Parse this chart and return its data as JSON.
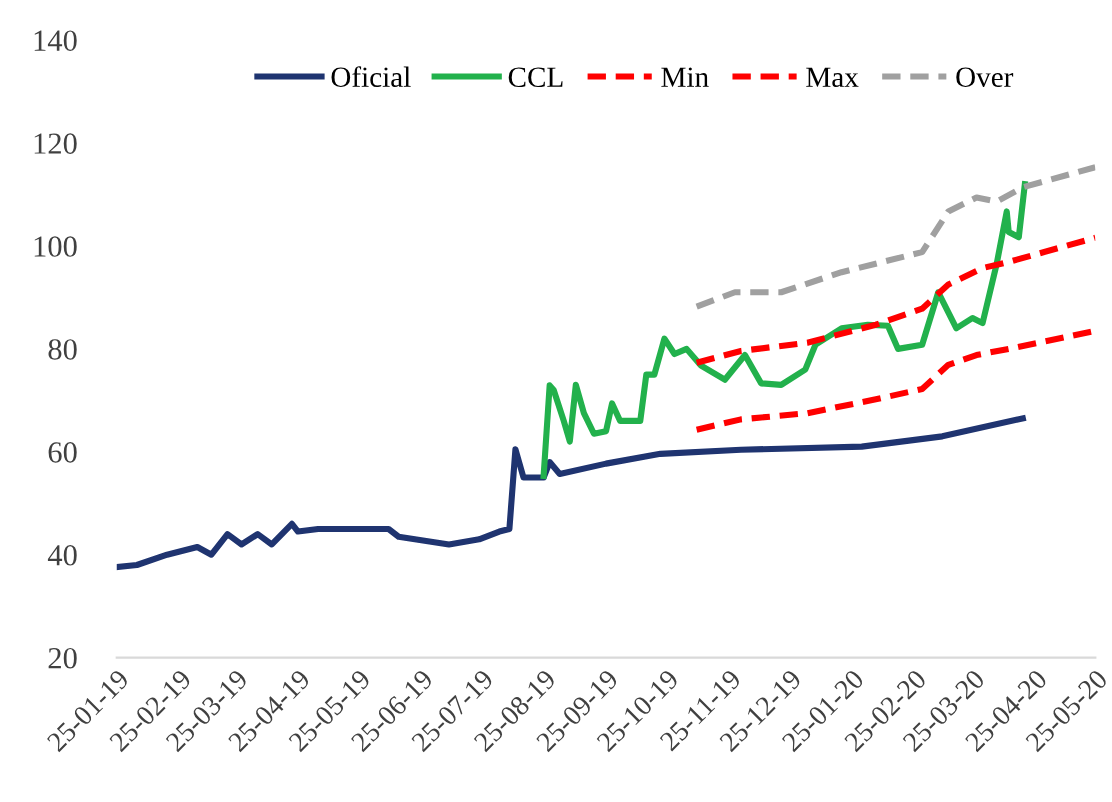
{
  "chart_data": {
    "type": "line",
    "xlim": [
      "2019-01-25",
      "2020-05-25"
    ],
    "xticks": [
      {
        "value": "2019-01-25",
        "label": "25-01-19"
      },
      {
        "value": "2019-02-25",
        "label": "25-02-19"
      },
      {
        "value": "2019-03-25",
        "label": "25-03-19"
      },
      {
        "value": "2019-04-25",
        "label": "25-04-19"
      },
      {
        "value": "2019-05-25",
        "label": "25-05-19"
      },
      {
        "value": "2019-06-25",
        "label": "25-06-19"
      },
      {
        "value": "2019-07-25",
        "label": "25-07-19"
      },
      {
        "value": "2019-08-25",
        "label": "25-08-19"
      },
      {
        "value": "2019-09-25",
        "label": "25-09-19"
      },
      {
        "value": "2019-10-25",
        "label": "25-10-19"
      },
      {
        "value": "2019-11-25",
        "label": "25-11-19"
      },
      {
        "value": "2019-12-25",
        "label": "25-12-19"
      },
      {
        "value": "2020-01-25",
        "label": "25-01-20"
      },
      {
        "value": "2020-02-25",
        "label": "25-02-20"
      },
      {
        "value": "2020-03-25",
        "label": "25-03-20"
      },
      {
        "value": "2020-04-25",
        "label": "25-04-20"
      },
      {
        "value": "2020-05-25",
        "label": "25-05-20"
      }
    ],
    "ylim": [
      20,
      140
    ],
    "yticks": [
      20,
      40,
      60,
      80,
      100,
      120,
      140
    ],
    "grid": false,
    "legend": "top",
    "marker": "none",
    "series": [
      {
        "name": "Oficial",
        "color": "#1f3470",
        "line_style": "solid",
        "x": [
          "2019-01-25",
          "2019-02-04",
          "2019-02-19",
          "2019-03-06",
          "2019-03-13",
          "2019-03-21",
          "2019-03-28",
          "2019-04-05",
          "2019-04-12",
          "2019-04-22",
          "2019-04-25",
          "2019-05-05",
          "2019-06-09",
          "2019-06-14",
          "2019-07-09",
          "2019-07-24",
          "2019-08-03",
          "2019-08-08",
          "2019-08-11",
          "2019-08-15",
          "2019-08-25",
          "2019-08-28",
          "2019-09-02",
          "2019-09-25",
          "2019-10-22",
          "2019-12-01",
          "2020-01-30",
          "2020-03-10",
          "2020-04-19"
        ],
        "values": [
          37.6,
          38,
          40,
          41.5,
          40,
          44,
          42,
          44,
          42,
          46,
          44.5,
          45,
          45,
          43.5,
          42,
          43,
          44.5,
          45,
          60.5,
          55,
          55,
          58,
          55.7,
          57.7,
          59.6,
          60.4,
          61,
          63,
          66.5
        ]
      },
      {
        "name": "CCL",
        "color": "#22b14c",
        "line_style": "solid",
        "x": [
          "2019-08-25",
          "2019-08-28",
          "2019-08-30",
          "2019-09-04",
          "2019-09-07",
          "2019-09-10",
          "2019-09-14",
          "2019-09-19",
          "2019-09-25",
          "2019-09-28",
          "2019-10-02",
          "2019-10-12",
          "2019-10-15",
          "2019-10-19",
          "2019-10-24",
          "2019-10-29",
          "2019-11-04",
          "2019-11-11",
          "2019-11-23",
          "2019-12-03",
          "2019-12-11",
          "2019-12-21",
          "2020-01-02",
          "2020-01-07",
          "2020-01-20",
          "2020-02-02",
          "2020-02-12",
          "2020-02-17",
          "2020-02-29",
          "2020-03-08",
          "2020-03-17",
          "2020-03-25",
          "2020-03-30",
          "2020-04-06",
          "2020-04-11",
          "2020-04-12",
          "2020-04-17",
          "2020-04-20"
        ],
        "values": [
          55.3,
          72.9,
          72,
          66,
          62,
          73,
          67.5,
          63.5,
          64,
          69.4,
          66,
          66,
          75,
          75,
          82,
          79,
          80,
          76.8,
          74,
          78.8,
          73.3,
          73,
          76,
          80.8,
          84,
          84.7,
          84.5,
          80,
          80.8,
          91,
          84,
          86,
          85,
          96.5,
          106.7,
          102.7,
          101.7,
          112
        ]
      },
      {
        "name": "Min",
        "color": "#ff0000",
        "line_style": "dashed",
        "x": [
          "2019-11-09",
          "2019-12-01",
          "2020-01-03",
          "2020-02-06",
          "2020-02-29",
          "2020-03-13",
          "2020-03-27",
          "2020-04-12",
          "2020-05-25"
        ],
        "values": [
          64.3,
          66.3,
          67.5,
          70.2,
          72.2,
          76.9,
          78.8,
          80,
          83.5
        ]
      },
      {
        "name": "Max",
        "color": "#ff0000",
        "line_style": "dashed",
        "x": [
          "2019-11-09",
          "2019-12-01",
          "2020-01-03",
          "2020-02-06",
          "2020-02-29",
          "2020-03-13",
          "2020-03-30",
          "2020-04-12",
          "2020-05-25"
        ],
        "values": [
          77.3,
          79.6,
          81.2,
          84.7,
          87.8,
          92.5,
          95.7,
          96.9,
          101.6
        ]
      },
      {
        "name": "Over",
        "color": "#a0a0a0",
        "line_style": "dashed",
        "x": [
          "2019-11-09",
          "2019-11-28",
          "2019-12-21",
          "2020-01-20",
          "2020-02-29",
          "2020-03-13",
          "2020-03-27",
          "2020-04-06",
          "2020-04-19",
          "2020-05-25"
        ],
        "values": [
          88.2,
          91,
          91,
          94.9,
          98.8,
          106.7,
          109.4,
          108.6,
          111.4,
          115.3
        ]
      }
    ]
  }
}
